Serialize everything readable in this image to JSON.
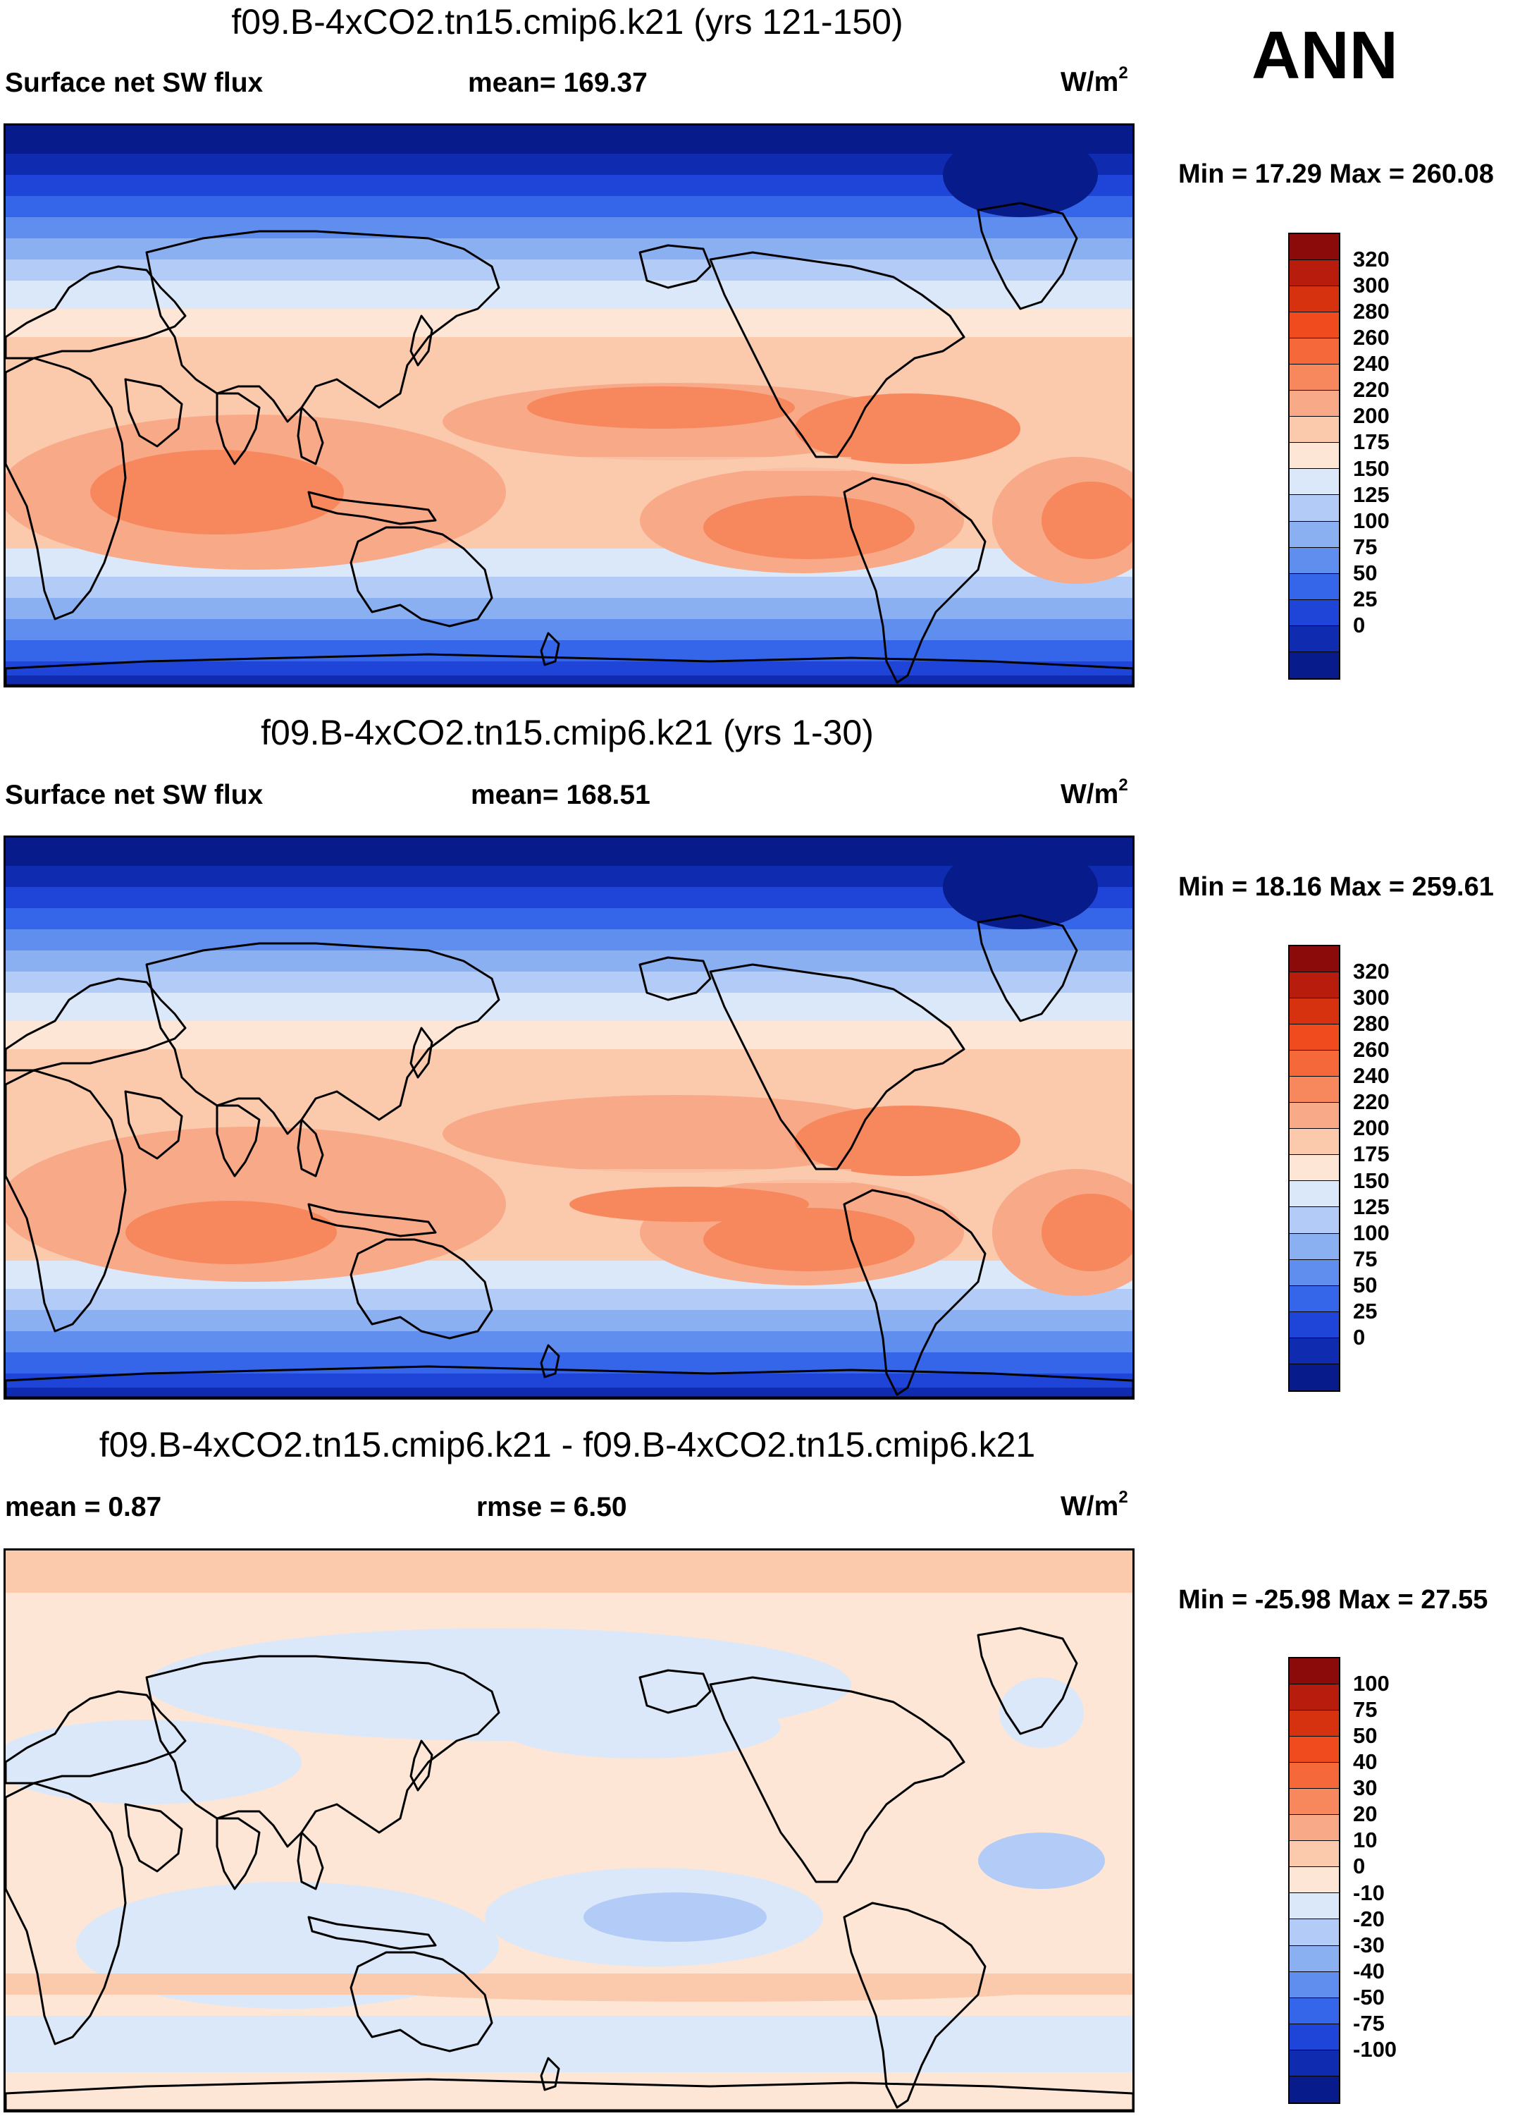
{
  "season": "ANN",
  "panels": [
    {
      "title": "f09.B-4xCO2.tn15.cmip6.k21 (yrs 121-150)",
      "left_label": "Surface net SW flux",
      "center_label": "mean= 169.37",
      "units_base": "W/m",
      "units_exp": "2",
      "minmax": "Min =  17.29 Max = 260.08",
      "colorbar": {
        "levels": [
          "320",
          "300",
          "280",
          "260",
          "240",
          "220",
          "200",
          "175",
          "150",
          "125",
          "100",
          "75",
          "50",
          "25",
          "0"
        ],
        "colors": [
          "#8b0a0a",
          "#b71c0c",
          "#d7320f",
          "#f04a1f",
          "#f4683a",
          "#f7885e",
          "#f8a987",
          "#fbc9ac",
          "#fde6d6",
          "#dbe8fa",
          "#b3ccf7",
          "#8bb0f2",
          "#5f8eee",
          "#3565e8",
          "#1f45d8",
          "#0f2bb0",
          "#071c8a"
        ]
      }
    },
    {
      "title": "f09.B-4xCO2.tn15.cmip6.k21 (yrs 1-30)",
      "left_label": "Surface net SW flux",
      "center_label": "mean= 168.51",
      "units_base": "W/m",
      "units_exp": "2",
      "minmax": "Min =  18.16 Max = 259.61",
      "colorbar": {
        "levels": [
          "320",
          "300",
          "280",
          "260",
          "240",
          "220",
          "200",
          "175",
          "150",
          "125",
          "100",
          "75",
          "50",
          "25",
          "0"
        ],
        "colors": [
          "#8b0a0a",
          "#b71c0c",
          "#d7320f",
          "#f04a1f",
          "#f4683a",
          "#f7885e",
          "#f8a987",
          "#fbc9ac",
          "#fde6d6",
          "#dbe8fa",
          "#b3ccf7",
          "#8bb0f2",
          "#5f8eee",
          "#3565e8",
          "#1f45d8",
          "#0f2bb0",
          "#071c8a"
        ]
      }
    },
    {
      "title": "f09.B-4xCO2.tn15.cmip6.k21 - f09.B-4xCO2.tn15.cmip6.k21",
      "left_label": "mean =   0.87",
      "center_label": "rmse =   6.50",
      "units_base": "W/m",
      "units_exp": "2",
      "minmax": "Min = -25.98 Max =  27.55",
      "colorbar": {
        "levels": [
          "100",
          "75",
          "50",
          "40",
          "30",
          "20",
          "10",
          "0",
          "-10",
          "-20",
          "-30",
          "-40",
          "-50",
          "-75",
          "-100"
        ],
        "colors": [
          "#8b0a0a",
          "#b71c0c",
          "#d7320f",
          "#f04a1f",
          "#f4683a",
          "#f7885e",
          "#f8a987",
          "#fbc9ac",
          "#fde6d6",
          "#dbe8fa",
          "#b3ccf7",
          "#8bb0f2",
          "#5f8eee",
          "#3565e8",
          "#1f45d8",
          "#0f2bb0",
          "#071c8a"
        ]
      }
    }
  ]
}
